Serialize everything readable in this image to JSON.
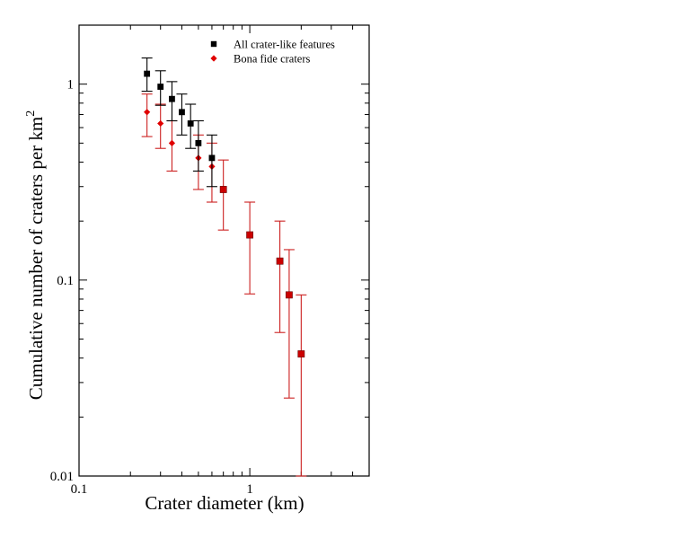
{
  "chart_data": {
    "type": "scatter",
    "xlabel": "Crater diameter (km)",
    "ylabel": "Cumulative number of craters per km",
    "ylabel_superscript": "2",
    "x_scale": "log",
    "y_scale": "log",
    "xlim": [
      0.1,
      5
    ],
    "ylim": [
      0.01,
      2
    ],
    "x_tick_labels": [
      {
        "value": 0.1,
        "label": "0.1"
      },
      {
        "value": 1,
        "label": "1"
      }
    ],
    "y_tick_labels": [
      {
        "value": 0.01,
        "label": "0.01"
      },
      {
        "value": 0.1,
        "label": "0.1"
      },
      {
        "value": 1,
        "label": "1"
      }
    ],
    "grid": false,
    "legend_placement": "top-right",
    "series": [
      {
        "name": "All crater-like features",
        "marker": "square",
        "color": "#000000",
        "points": [
          {
            "x": 0.25,
            "y": 1.13,
            "y_low": 0.92,
            "y_high": 1.36
          },
          {
            "x": 0.3,
            "y": 0.97,
            "y_low": 0.78,
            "y_high": 1.17
          },
          {
            "x": 0.35,
            "y": 0.84,
            "y_low": 0.65,
            "y_high": 1.03
          },
          {
            "x": 0.4,
            "y": 0.72,
            "y_low": 0.55,
            "y_high": 0.89
          },
          {
            "x": 0.45,
            "y": 0.63,
            "y_low": 0.47,
            "y_high": 0.79
          },
          {
            "x": 0.5,
            "y": 0.5,
            "y_low": 0.36,
            "y_high": 0.65
          },
          {
            "x": 0.6,
            "y": 0.42,
            "y_low": 0.3,
            "y_high": 0.55
          }
        ]
      },
      {
        "name": "Bona fide craters",
        "marker": "diamond",
        "color": "#e00000",
        "points": [
          {
            "x": 0.25,
            "y": 0.72,
            "y_low": 0.54,
            "y_high": 0.89
          },
          {
            "x": 0.3,
            "y": 0.63,
            "y_low": 0.47,
            "y_high": 0.79
          },
          {
            "x": 0.35,
            "y": 0.5,
            "y_low": 0.36,
            "y_high": 0.65
          },
          {
            "x": 0.5,
            "y": 0.42,
            "y_low": 0.29,
            "y_high": 0.55
          },
          {
            "x": 0.6,
            "y": 0.38,
            "y_low": 0.25,
            "y_high": 0.5
          },
          {
            "x": 0.7,
            "y": 0.29,
            "y_low": 0.18,
            "y_high": 0.41
          },
          {
            "x": 1.0,
            "y": 0.17,
            "y_low": 0.085,
            "y_high": 0.25
          },
          {
            "x": 1.5,
            "y": 0.125,
            "y_low": 0.054,
            "y_high": 0.2
          },
          {
            "x": 1.7,
            "y": 0.084,
            "y_low": 0.025,
            "y_high": 0.143
          },
          {
            "x": 2.0,
            "y": 0.042,
            "y_low": 0.01,
            "y_high": 0.084
          }
        ]
      }
    ],
    "colors": {
      "errorbar_red": "#cc2020",
      "square_red_fill": "#cc0000"
    }
  }
}
